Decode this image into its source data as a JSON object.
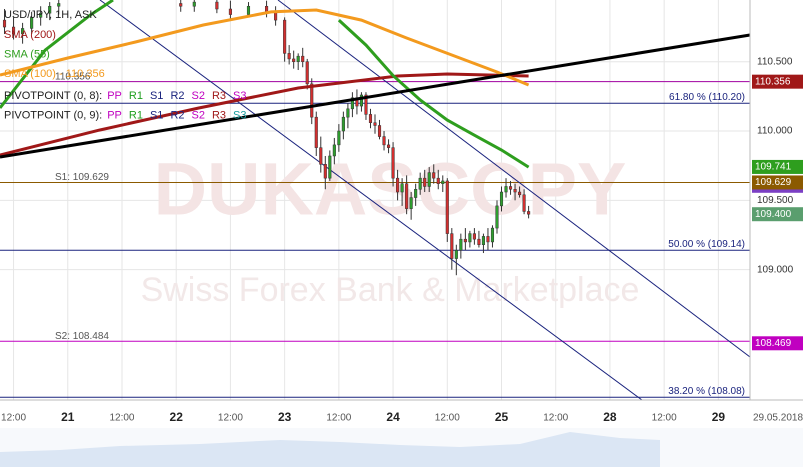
{
  "chart_data": {
    "type": "candlestick",
    "title": "USD/JPY, 1H, ASK",
    "watermark": "DUKASCOPY",
    "watermark_subtitle": "Swiss Forex Bank & Marketplace",
    "date_label": "29.05.2018",
    "up_color": "#2e9e2e",
    "down_color": "#d32f2f",
    "grid": true,
    "xlim": [
      -15,
      151
    ],
    "ylim": [
      108.06,
      110.945
    ],
    "xticks": [
      {
        "value": -12,
        "label": "12:00"
      },
      {
        "value": 0,
        "label": "21"
      },
      {
        "value": 12,
        "label": "12:00"
      },
      {
        "value": 24,
        "label": "22"
      },
      {
        "value": 36,
        "label": "12:00"
      },
      {
        "value": 48,
        "label": "23"
      },
      {
        "value": 60,
        "label": "12:00"
      },
      {
        "value": 72,
        "label": "24"
      },
      {
        "value": 84,
        "label": "12:00"
      },
      {
        "value": 96,
        "label": "25"
      },
      {
        "value": 108,
        "label": "12:00"
      },
      {
        "value": 120,
        "label": "28"
      },
      {
        "value": 132,
        "label": "12:00"
      },
      {
        "value": 144,
        "label": "29"
      }
    ],
    "yticks": [
      {
        "value": 109.0,
        "label": "109.000"
      },
      {
        "value": 109.5,
        "label": "109.500"
      },
      {
        "value": 110.0,
        "label": "110.000"
      },
      {
        "value": 110.5,
        "label": "110.500"
      }
    ],
    "candles": {
      "x": [
        -14,
        -12,
        -10,
        -8,
        -6,
        -4,
        -2,
        25,
        28,
        33,
        36,
        40,
        44,
        46,
        48,
        49,
        50,
        51,
        52,
        53,
        54,
        55,
        56,
        57,
        58,
        59,
        60,
        61,
        62,
        63,
        64,
        65,
        66,
        67,
        68,
        69,
        70,
        71,
        72,
        73,
        74,
        75,
        76,
        77,
        78,
        79,
        80,
        81,
        82,
        83,
        84,
        85,
        86,
        87,
        88,
        89,
        90,
        91,
        92,
        93,
        94,
        95,
        96,
        97,
        98,
        99,
        100,
        101,
        102
      ],
      "open": [
        110.8,
        110.75,
        110.7,
        110.74,
        110.82,
        110.85,
        110.9,
        110.92,
        110.9,
        110.93,
        110.88,
        110.84,
        110.9,
        110.86,
        110.8,
        110.56,
        110.52,
        110.5,
        110.54,
        110.5,
        110.34,
        110.1,
        109.88,
        109.76,
        109.66,
        109.82,
        109.9,
        110.0,
        110.1,
        110.16,
        110.24,
        110.18,
        110.26,
        110.12,
        110.06,
        110.04,
        109.96,
        109.9,
        109.88,
        109.66,
        109.56,
        109.62,
        109.44,
        109.52,
        109.58,
        109.66,
        109.6,
        109.7,
        109.66,
        109.62,
        109.64,
        109.26,
        109.08,
        109.14,
        109.22,
        109.2,
        109.26,
        109.22,
        109.18,
        109.24,
        109.2,
        109.3,
        109.46,
        109.56,
        109.6,
        109.58,
        109.56,
        109.54,
        109.42
      ],
      "high": [
        110.88,
        110.82,
        110.78,
        110.86,
        110.9,
        110.93,
        110.96,
        110.96,
        110.95,
        110.96,
        110.94,
        110.93,
        110.94,
        110.9,
        110.82,
        110.62,
        110.58,
        110.56,
        110.6,
        110.52,
        110.38,
        110.14,
        109.96,
        109.82,
        109.86,
        109.95,
        110.05,
        110.14,
        110.2,
        110.28,
        110.3,
        110.28,
        110.28,
        110.16,
        110.12,
        110.08,
        110.0,
        109.94,
        109.92,
        109.72,
        109.66,
        109.68,
        109.56,
        109.62,
        109.7,
        109.72,
        109.74,
        109.76,
        109.72,
        109.68,
        109.66,
        109.3,
        109.18,
        109.26,
        109.3,
        109.28,
        109.3,
        109.28,
        109.26,
        109.3,
        109.32,
        109.5,
        109.6,
        109.66,
        109.64,
        109.62,
        109.6,
        109.58,
        109.46
      ],
      "low": [
        110.7,
        110.66,
        110.63,
        110.7,
        110.76,
        110.8,
        110.84,
        110.86,
        110.86,
        110.85,
        110.8,
        110.82,
        110.82,
        110.76,
        110.5,
        110.48,
        110.45,
        110.44,
        110.46,
        110.3,
        110.05,
        109.82,
        109.7,
        109.58,
        109.64,
        109.76,
        109.85,
        109.94,
        110.02,
        110.1,
        110.12,
        110.14,
        110.08,
        110.02,
        109.98,
        109.94,
        109.86,
        109.84,
        109.6,
        109.5,
        109.46,
        109.4,
        109.36,
        109.46,
        109.54,
        109.56,
        109.56,
        109.62,
        109.58,
        109.56,
        109.2,
        109.0,
        108.96,
        109.08,
        109.14,
        109.16,
        109.18,
        109.16,
        109.12,
        109.14,
        109.16,
        109.26,
        109.42,
        109.52,
        109.54,
        109.5,
        109.52,
        109.4,
        109.37
      ],
      "close": [
        110.75,
        110.7,
        110.74,
        110.82,
        110.85,
        110.9,
        110.92,
        110.9,
        110.93,
        110.88,
        110.84,
        110.9,
        110.86,
        110.8,
        110.56,
        110.52,
        110.5,
        110.54,
        110.5,
        110.34,
        110.1,
        109.88,
        109.76,
        109.66,
        109.82,
        109.9,
        110.0,
        110.1,
        110.16,
        110.24,
        110.18,
        110.26,
        110.12,
        110.06,
        110.04,
        109.96,
        109.9,
        109.88,
        109.66,
        109.56,
        109.62,
        109.44,
        109.52,
        109.58,
        109.66,
        109.6,
        109.7,
        109.66,
        109.62,
        109.64,
        109.26,
        109.08,
        109.14,
        109.22,
        109.2,
        109.26,
        109.22,
        109.18,
        109.24,
        109.2,
        109.3,
        109.46,
        109.56,
        109.6,
        109.58,
        109.56,
        109.54,
        109.42,
        109.4
      ]
    },
    "series": [
      {
        "name": "SMA (200)",
        "color": "#a01818",
        "x": [
          -15,
          7,
          29,
          51,
          73,
          84,
          102
        ],
        "values": [
          109.827,
          110.007,
          110.166,
          110.31,
          110.397,
          110.411,
          110.397
        ]
      },
      {
        "name": "SMA (55)",
        "color": "#2e9e1e",
        "x": [
          -15,
          -5,
          5,
          10,
          54,
          60,
          66,
          72,
          78,
          84,
          90,
          96,
          102
        ],
        "values": [
          110.166,
          110.584,
          110.837,
          110.945,
          null,
          110.8,
          110.62,
          110.4,
          110.224,
          110.079,
          109.97,
          109.863,
          109.74
        ]
      },
      {
        "name": "SMA (100) - 110.356",
        "color": "#f39a1e",
        "x": [
          -15,
          0,
          15,
          30,
          45,
          55,
          65,
          75,
          85,
          95,
          102
        ],
        "values": [
          110.404,
          110.527,
          110.642,
          110.765,
          110.859,
          110.873,
          110.8,
          110.671,
          110.548,
          110.426,
          110.332
        ]
      }
    ],
    "pivot_legends": [
      {
        "name": "PIVOTPOINT (0, 8):",
        "items": [
          {
            "label": "PP",
            "color": "#c000c0"
          },
          {
            "label": "R1",
            "color": "#1e9e1e"
          },
          {
            "label": "S1",
            "color": "#1a237e"
          },
          {
            "label": "R2",
            "color": "#1a237e"
          },
          {
            "label": "S2",
            "color": "#c000c0"
          },
          {
            "label": "R3",
            "color": "#a01818"
          },
          {
            "label": "S3",
            "color": "#c000c0"
          }
        ]
      },
      {
        "name": "PIVOTPOINT (0, 9):",
        "items": [
          {
            "label": "PP",
            "color": "#c000c0"
          },
          {
            "label": "R1",
            "color": "#1e9e1e"
          },
          {
            "label": "S1",
            "color": "#1a237e"
          },
          {
            "label": "R2",
            "color": "#1a237e"
          },
          {
            "label": "S2",
            "color": "#c000c0"
          },
          {
            "label": "R3",
            "color": "#a01818"
          },
          {
            "label": "S3",
            "color": "#1a9ea0"
          }
        ]
      }
    ],
    "levels": [
      {
        "label": "S1: 109.629",
        "value": 109.629,
        "color": "#8b5a00",
        "side": "left"
      },
      {
        "label": "S2: 108.484",
        "value": 108.484,
        "color": "#c000c0",
        "side": "left"
      },
      {
        "label": "110.356",
        "value": 110.356,
        "color": "#a000a0",
        "side": "left"
      },
      {
        "label": "61.80 % (110.20)",
        "value": 110.2,
        "color": "#1a237e",
        "side": "right"
      },
      {
        "label": "50.00 % (109.14)",
        "value": 109.14,
        "color": "#1a237e",
        "side": "right"
      },
      {
        "label": "38.20 % (108.08)",
        "value": 108.08,
        "color": "#1a237e",
        "side": "right"
      }
    ],
    "price_tags": [
      {
        "value": 110.356,
        "label": "110.356",
        "color": "#a01818"
      },
      {
        "value": 109.741,
        "label": "109.741",
        "color": "#2e9e1e"
      },
      {
        "value": 109.605,
        "label": "109.605",
        "color": "#7b3fc4"
      },
      {
        "value": 109.629,
        "label": "109.629",
        "color": "#8b5a00"
      },
      {
        "value": 109.4,
        "label": "109.400",
        "color": "#5a9e6e"
      },
      {
        "value": 108.469,
        "label": "108.469",
        "color": "#c000c0"
      }
    ]
  }
}
